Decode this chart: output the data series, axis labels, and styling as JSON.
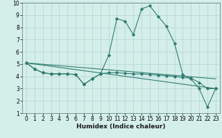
{
  "xlabel": "Humidex (Indice chaleur)",
  "x_values": [
    0,
    1,
    2,
    3,
    4,
    5,
    6,
    7,
    8,
    9,
    10,
    11,
    12,
    13,
    14,
    15,
    16,
    17,
    18,
    19,
    20,
    21,
    22,
    23
  ],
  "line1_y": [
    5.1,
    4.6,
    4.3,
    4.2,
    4.2,
    4.2,
    4.15,
    3.35,
    3.8,
    4.2,
    5.7,
    8.7,
    8.5,
    7.4,
    9.5,
    9.75,
    8.9,
    8.1,
    6.7,
    4.15,
    3.8,
    3.0,
    1.5,
    3.0
  ],
  "line2_y": [
    5.1,
    4.6,
    4.3,
    4.2,
    4.2,
    4.2,
    4.15,
    3.35,
    3.8,
    4.2,
    4.3,
    4.3,
    4.25,
    4.2,
    4.2,
    4.15,
    4.1,
    4.05,
    4.0,
    3.9,
    3.85,
    3.5,
    3.0,
    3.0
  ],
  "line3_x": [
    0,
    23
  ],
  "line3_y": [
    5.1,
    3.8
  ],
  "line4_x": [
    0,
    23
  ],
  "line4_y": [
    5.1,
    3.0
  ],
  "line_color": "#2e7b6e",
  "bg_color": "#d4eeea",
  "grid_color": "#b8d8d4",
  "ylim": [
    1,
    10
  ],
  "xlim": [
    -0.5,
    23.5
  ],
  "yticks": [
    1,
    2,
    3,
    4,
    5,
    6,
    7,
    8,
    9,
    10
  ],
  "xticks": [
    0,
    1,
    2,
    3,
    4,
    5,
    6,
    7,
    8,
    9,
    10,
    11,
    12,
    13,
    14,
    15,
    16,
    17,
    18,
    19,
    20,
    21,
    22,
    23
  ],
  "xlabel_fontsize": 6.5,
  "tick_fontsize": 5.5
}
